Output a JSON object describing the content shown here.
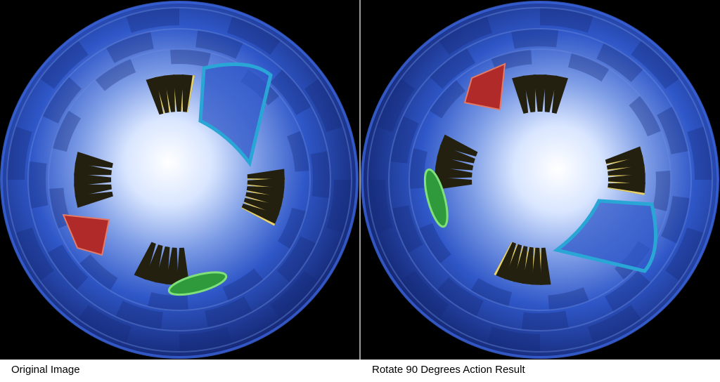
{
  "captions": {
    "left": "Original Image",
    "right": "Rotate 90 Degrees Action Result"
  },
  "colors": {
    "background": "#000000",
    "tube_blue": "#2f57c8",
    "tube_dark": "#162a78",
    "center_glow": "#ffffff",
    "spike_dark": "#232010",
    "spike_yellow": "#e8d36a",
    "red_ornament": "#b02a2a",
    "green_ornament": "#2f9a3c",
    "cyan_ornament": "#2aa6d6"
  },
  "images": [
    {
      "name": "original-image",
      "rotation_degrees": 0
    },
    {
      "name": "rotated-image",
      "rotation_degrees": 90
    }
  ]
}
